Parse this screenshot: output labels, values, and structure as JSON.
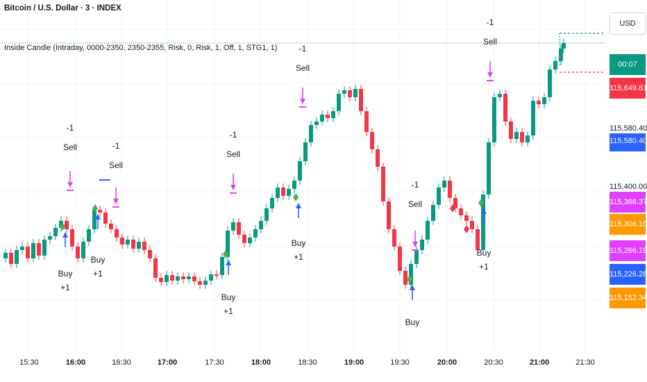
{
  "header": {
    "symbol_line": "Bitcoin / U.S. Dollar · 3 · INDEX",
    "indicator_line": "Inside Candle (Intraday, 0000-2350, 2350-2355, Risk, 0, Risk, 1, Off, 1, STG1, 1)"
  },
  "axis": {
    "currency_button": "USD",
    "price_tags": [
      {
        "label": "00:07",
        "top_label": "",
        "color": "#089981"
      },
      {
        "label": "115,649.81",
        "color": "#f23645"
      },
      {
        "label": "115,580.40",
        "color": "#2962ff"
      },
      {
        "label": "115,366.37",
        "color": "#e040fb"
      },
      {
        "label": "115,306.10",
        "color": "#ff9800"
      },
      {
        "label": "115,266.19",
        "color": "#e040fb"
      },
      {
        "label": "115,226.28",
        "color": "#2962ff"
      },
      {
        "label": "115,152.34",
        "color": "#ff9800"
      }
    ],
    "partial_labels": [
      "115,580.40",
      "115,400.00"
    ]
  },
  "chart_data": {
    "type": "candlestick",
    "x_tick_labels": [
      {
        "t": "15:30",
        "bold": false
      },
      {
        "t": "16:00",
        "bold": true
      },
      {
        "t": "16:30",
        "bold": false
      },
      {
        "t": "17:00",
        "bold": true
      },
      {
        "t": "17:30",
        "bold": false
      },
      {
        "t": "18:00",
        "bold": true
      },
      {
        "t": "18:30",
        "bold": false
      },
      {
        "t": "19:00",
        "bold": true
      },
      {
        "t": "19:30",
        "bold": false
      },
      {
        "t": "20:00",
        "bold": true
      },
      {
        "t": "20:30",
        "bold": false
      },
      {
        "t": "21:00",
        "bold": true
      },
      {
        "t": "21:30",
        "bold": false
      }
    ],
    "signals": [
      {
        "type": "buy",
        "lines": [
          "Buy",
          "+1"
        ]
      },
      {
        "type": "buy",
        "lines": [
          "Buy",
          "+1"
        ]
      },
      {
        "type": "buy",
        "lines": [
          "Buy",
          "+1"
        ]
      },
      {
        "type": "buy",
        "lines": [
          "Buy",
          "+1"
        ]
      },
      {
        "type": "buy",
        "lines": [
          "Buy"
        ]
      },
      {
        "type": "buy",
        "lines": [
          "Buy",
          "+1"
        ]
      },
      {
        "type": "sell",
        "lines": [
          "-1",
          "Sell"
        ]
      },
      {
        "type": "sell",
        "lines": [
          "-1",
          "Sell"
        ]
      },
      {
        "type": "sell",
        "lines": [
          "-1",
          "Sell"
        ]
      },
      {
        "type": "sell",
        "lines": [
          "-1",
          "Sell"
        ]
      },
      {
        "type": "sell",
        "lines": [
          "-1",
          "Sell"
        ]
      },
      {
        "type": "sell",
        "lines": [
          "-1",
          "Sell"
        ]
      }
    ],
    "colors": {
      "up": "#089981",
      "down": "#f23645",
      "buy_arrow": "#2962ff",
      "sell_arrow": "#e040fb",
      "diamond": "#4caf50",
      "diamond_red": "#f23645"
    }
  }
}
